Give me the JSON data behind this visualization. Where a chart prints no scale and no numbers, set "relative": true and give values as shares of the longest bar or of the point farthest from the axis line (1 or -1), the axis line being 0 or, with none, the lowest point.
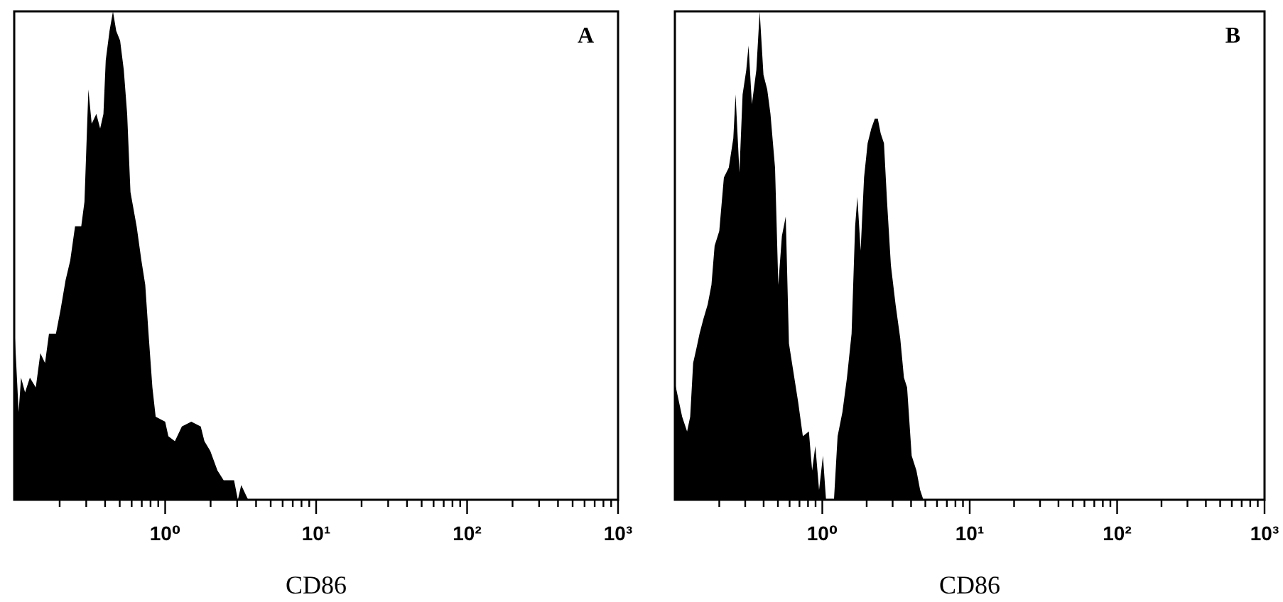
{
  "chart_data": [
    {
      "type": "area",
      "title": "A",
      "xlabel": "CD86",
      "color": "#000000",
      "relative": true,
      "log": "x",
      "xlim": [
        0.1,
        1000
      ],
      "xticks": [
        {
          "value": 0.2,
          "label": null
        },
        {
          "value": 0.3,
          "label": null
        },
        {
          "value": 0.4,
          "label": null
        },
        {
          "value": 0.5,
          "label": null
        },
        {
          "value": 0.6,
          "label": null
        },
        {
          "value": 0.7,
          "label": null
        },
        {
          "value": 0.8,
          "label": null
        },
        {
          "value": 0.9,
          "label": null
        },
        {
          "value": 1,
          "label": "10⁰"
        },
        {
          "value": 2,
          "label": null
        },
        {
          "value": 3,
          "label": null
        },
        {
          "value": 4,
          "label": null
        },
        {
          "value": 5,
          "label": null
        },
        {
          "value": 6,
          "label": null
        },
        {
          "value": 7,
          "label": null
        },
        {
          "value": 8,
          "label": null
        },
        {
          "value": 9,
          "label": null
        },
        {
          "value": 10,
          "label": "10¹"
        },
        {
          "value": 20,
          "label": null
        },
        {
          "value": 30,
          "label": null
        },
        {
          "value": 40,
          "label": null
        },
        {
          "value": 50,
          "label": null
        },
        {
          "value": 60,
          "label": null
        },
        {
          "value": 70,
          "label": null
        },
        {
          "value": 80,
          "label": null
        },
        {
          "value": 90,
          "label": null
        },
        {
          "value": 100,
          "label": "10²"
        },
        {
          "value": 200,
          "label": null
        },
        {
          "value": 300,
          "label": null
        },
        {
          "value": 400,
          "label": null
        },
        {
          "value": 500,
          "label": null
        },
        {
          "value": 600,
          "label": null
        },
        {
          "value": 700,
          "label": null
        },
        {
          "value": 800,
          "label": null
        },
        {
          "value": 900,
          "label": null
        },
        {
          "value": 1000,
          "label": "10³"
        }
      ],
      "x": [
        0.1,
        0.107,
        0.111,
        0.118,
        0.127,
        0.139,
        0.149,
        0.16,
        0.17,
        0.189,
        0.203,
        0.219,
        0.235,
        0.253,
        0.278,
        0.292,
        0.31,
        0.326,
        0.35,
        0.371,
        0.39,
        0.404,
        0.428,
        0.451,
        0.474,
        0.503,
        0.532,
        0.56,
        0.589,
        0.647,
        0.696,
        0.738,
        0.776,
        0.823,
        0.865,
        1.0,
        1.05,
        1.16,
        1.29,
        1.49,
        1.72,
        1.82,
        1.99,
        2.22,
        2.44,
        2.86,
        3.03,
        3.19,
        3.42,
        3.55
      ],
      "values": [
        0.36,
        0.18,
        0.25,
        0.22,
        0.25,
        0.23,
        0.3,
        0.28,
        0.34,
        0.34,
        0.39,
        0.45,
        0.49,
        0.56,
        0.56,
        0.61,
        0.84,
        0.77,
        0.79,
        0.76,
        0.79,
        0.9,
        0.96,
        1,
        0.96,
        0.94,
        0.88,
        0.79,
        0.63,
        0.56,
        0.49,
        0.44,
        0.34,
        0.23,
        0.17,
        0.16,
        0.13,
        0.12,
        0.15,
        0.16,
        0.15,
        0.12,
        0.1,
        0.06,
        0.04,
        0.04,
        0,
        0.03,
        0.01,
        0
      ]
    },
    {
      "type": "area",
      "title": "B",
      "xlabel": "CD86",
      "color": "#000000",
      "relative": true,
      "log": "x",
      "xlim": [
        0.1,
        1000
      ],
      "xticks": [
        {
          "value": 0.2,
          "label": null
        },
        {
          "value": 0.3,
          "label": null
        },
        {
          "value": 0.4,
          "label": null
        },
        {
          "value": 0.5,
          "label": null
        },
        {
          "value": 0.6,
          "label": null
        },
        {
          "value": 0.7,
          "label": null
        },
        {
          "value": 0.8,
          "label": null
        },
        {
          "value": 0.9,
          "label": null
        },
        {
          "value": 1,
          "label": "10⁰"
        },
        {
          "value": 2,
          "label": null
        },
        {
          "value": 3,
          "label": null
        },
        {
          "value": 4,
          "label": null
        },
        {
          "value": 5,
          "label": null
        },
        {
          "value": 6,
          "label": null
        },
        {
          "value": 7,
          "label": null
        },
        {
          "value": 8,
          "label": null
        },
        {
          "value": 9,
          "label": null
        },
        {
          "value": 10,
          "label": "10¹"
        },
        {
          "value": 20,
          "label": null
        },
        {
          "value": 30,
          "label": null
        },
        {
          "value": 40,
          "label": null
        },
        {
          "value": 50,
          "label": null
        },
        {
          "value": 60,
          "label": null
        },
        {
          "value": 70,
          "label": null
        },
        {
          "value": 80,
          "label": null
        },
        {
          "value": 90,
          "label": null
        },
        {
          "value": 100,
          "label": "10²"
        },
        {
          "value": 200,
          "label": null
        },
        {
          "value": 300,
          "label": null
        },
        {
          "value": 400,
          "label": null
        },
        {
          "value": 500,
          "label": null
        },
        {
          "value": 600,
          "label": null
        },
        {
          "value": 700,
          "label": null
        },
        {
          "value": 800,
          "label": null
        },
        {
          "value": 900,
          "label": null
        },
        {
          "value": 1000,
          "label": "10³"
        }
      ],
      "x": [
        0.1,
        0.112,
        0.121,
        0.127,
        0.133,
        0.14,
        0.147,
        0.156,
        0.167,
        0.177,
        0.186,
        0.2,
        0.215,
        0.232,
        0.249,
        0.258,
        0.274,
        0.288,
        0.305,
        0.316,
        0.333,
        0.357,
        0.376,
        0.399,
        0.423,
        0.445,
        0.478,
        0.503,
        0.532,
        0.565,
        0.594,
        0.638,
        0.686,
        0.738,
        0.811,
        0.853,
        0.897,
        0.951,
        1.01,
        1.06,
        1.11,
        1.2,
        1.27,
        1.37,
        1.47,
        1.58,
        1.67,
        1.73,
        1.82,
        1.92,
        2.03,
        2.15,
        2.27,
        2.38,
        2.49,
        2.62,
        2.75,
        2.92,
        3.14,
        3.38,
        3.58,
        3.76,
        4.04,
        4.35,
        4.61,
        4.85
      ],
      "values": [
        0.24,
        0.17,
        0.14,
        0.17,
        0.28,
        0.31,
        0.34,
        0.37,
        0.4,
        0.44,
        0.52,
        0.55,
        0.66,
        0.68,
        0.74,
        0.83,
        0.67,
        0.83,
        0.88,
        0.93,
        0.81,
        0.88,
        1,
        0.87,
        0.84,
        0.79,
        0.68,
        0.44,
        0.54,
        0.58,
        0.32,
        0.26,
        0.2,
        0.13,
        0.14,
        0.06,
        0.11,
        0.02,
        0.09,
        0,
        0,
        0,
        0.13,
        0.18,
        0.25,
        0.34,
        0.56,
        0.62,
        0.51,
        0.66,
        0.73,
        0.76,
        0.78,
        0.78,
        0.75,
        0.73,
        0.61,
        0.48,
        0.4,
        0.33,
        0.25,
        0.23,
        0.09,
        0.06,
        0.02,
        0
      ]
    }
  ]
}
